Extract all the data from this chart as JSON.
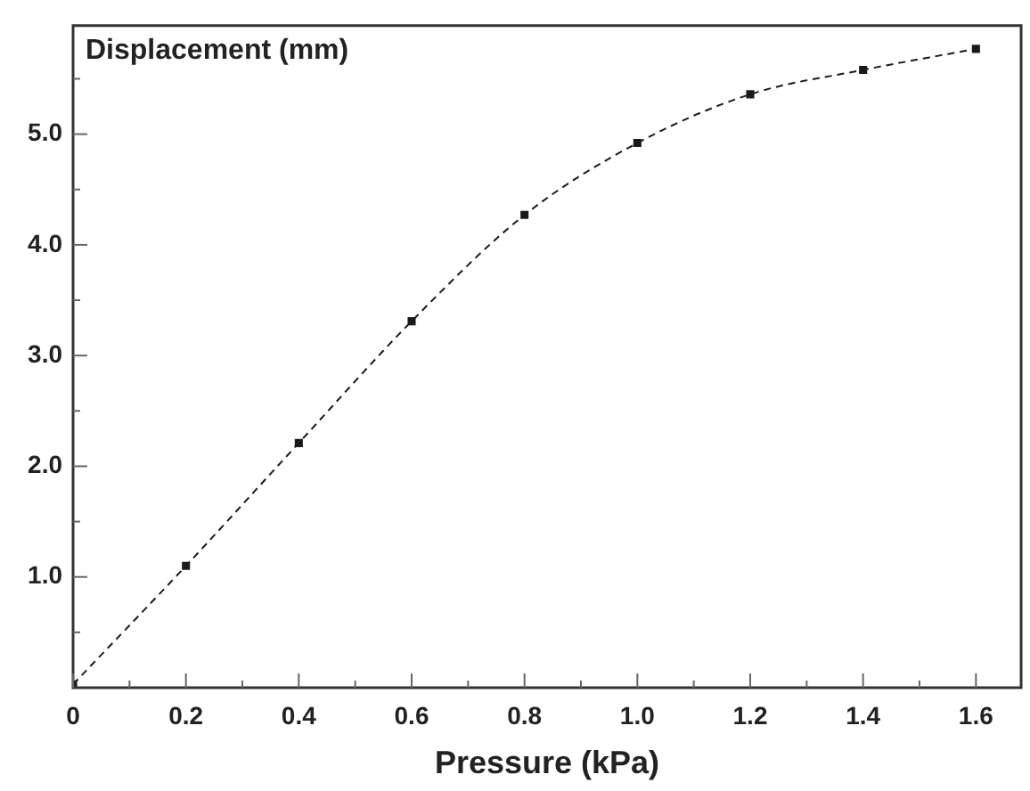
{
  "chart_data": {
    "type": "line",
    "xlabel": "Pressure (kPa)",
    "ylabel": "Displacement (mm)",
    "xlim": [
      0,
      1.68
    ],
    "ylim": [
      0,
      5.98
    ],
    "xticks": [
      0,
      {
        "value": 0.1,
        "label": null
      },
      0.2,
      {
        "value": 0.3,
        "label": null
      },
      0.4,
      {
        "value": 0.5,
        "label": null
      },
      0.6,
      {
        "value": 0.7,
        "label": null
      },
      0.8,
      {
        "value": 0.9,
        "label": null
      },
      {
        "value": 1,
        "label": "1.0"
      },
      {
        "value": 1.1,
        "label": null
      },
      1.2,
      {
        "value": 1.3,
        "label": null
      },
      1.4,
      {
        "value": 1.5,
        "label": null
      },
      1.6
    ],
    "yticks": [
      {
        "value": 0.5,
        "label": null
      },
      {
        "value": 1,
        "label": "1.0"
      },
      {
        "value": 1.5,
        "label": null
      },
      {
        "value": 2,
        "label": "2.0"
      },
      {
        "value": 2.5,
        "label": null
      },
      {
        "value": 3,
        "label": "3.0"
      },
      {
        "value": 3.5,
        "label": null
      },
      {
        "value": 4,
        "label": "4.0"
      },
      {
        "value": 4.5,
        "label": null
      },
      {
        "value": 5,
        "label": "5.0"
      },
      {
        "value": 5.5,
        "label": null
      }
    ],
    "x": [
      0,
      0.2,
      0.4,
      0.6,
      0.8,
      1.0,
      1.2,
      1.4,
      1.6
    ],
    "series": [
      {
        "color": "#1a1a1a",
        "values": [
          0.03,
          1.1,
          2.21,
          3.31,
          4.27,
          4.92,
          5.36,
          5.58,
          5.77
        ]
      }
    ],
    "marker": "square",
    "line_style": "dashed",
    "grid": false,
    "legend": false
  }
}
